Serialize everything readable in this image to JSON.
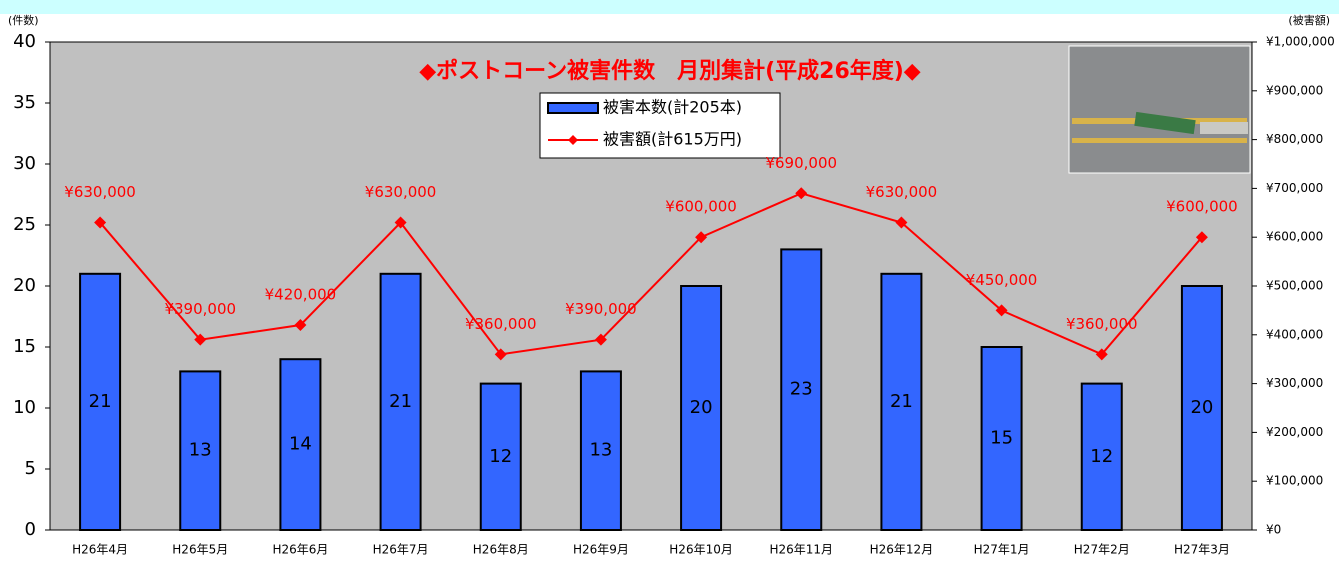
{
  "chart_data": {
    "type": "bar-line",
    "title": "◆ポストコーン被害件数　月別集計(平成26年度)◆",
    "y_label": "(件数)",
    "y2_label": "(被害額)",
    "categories": [
      "H26年4月",
      "H26年5月",
      "H26年6月",
      "H26年7月",
      "H26年8月",
      "H26年9月",
      "H26年10月",
      "H26年11月",
      "H26年12月",
      "H27年1月",
      "H27年2月",
      "H27年3月"
    ],
    "series": [
      {
        "name": "被害本数(計205本)",
        "kind": "bar",
        "color": "#3366ff",
        "values": [
          21,
          13,
          14,
          21,
          12,
          13,
          20,
          23,
          21,
          15,
          12,
          20
        ]
      },
      {
        "name": "被害額(計615万円)",
        "kind": "line",
        "axis": "y2",
        "color": "#ff0000",
        "values": [
          630000,
          390000,
          420000,
          630000,
          360000,
          390000,
          600000,
          690000,
          630000,
          450000,
          360000,
          600000
        ],
        "value_labels": [
          "¥630,000",
          "¥390,000",
          "¥420,000",
          "¥630,000",
          "¥360,000",
          "¥390,000",
          "¥600,000",
          "¥690,000",
          "¥630,000",
          "¥450,000",
          "¥360,000",
          "¥600,000"
        ]
      }
    ],
    "ylim": [
      0,
      40
    ],
    "yticks": [
      0,
      5,
      10,
      15,
      20,
      25,
      30,
      35,
      40
    ],
    "y2lim": [
      0,
      1000000
    ],
    "y2ticks": [
      {
        "value": 0,
        "label": "¥0"
      },
      {
        "value": 100000,
        "label": "¥100,000"
      },
      {
        "value": 200000,
        "label": "¥200,000"
      },
      {
        "value": 300000,
        "label": "¥300,000"
      },
      {
        "value": 400000,
        "label": "¥400,000"
      },
      {
        "value": 500000,
        "label": "¥500,000"
      },
      {
        "value": 600000,
        "label": "¥600,000"
      },
      {
        "value": 700000,
        "label": "¥700,000"
      },
      {
        "value": 800000,
        "label": "¥800,000"
      },
      {
        "value": 900000,
        "label": "¥900,000"
      },
      {
        "value": 1000000,
        "label": "¥1,000,000"
      }
    ],
    "plot_background": "#c0c0c0"
  }
}
